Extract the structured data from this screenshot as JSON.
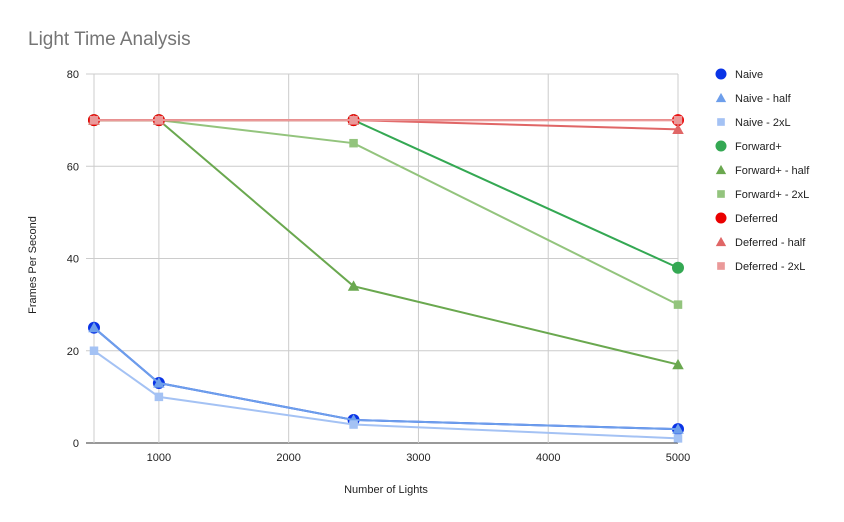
{
  "chart_data": {
    "type": "line",
    "title": "Light Time Analysis",
    "xlabel": "Number of Lights",
    "ylabel": "Frames Per Second",
    "xlim": [
      500,
      5000
    ],
    "ylim": [
      0,
      80
    ],
    "x_ticks": [
      1000,
      2000,
      3000,
      4000,
      5000
    ],
    "y_ticks": [
      0,
      20,
      40,
      60,
      80
    ],
    "grid": true,
    "legend_position": "right",
    "x": [
      500,
      1000,
      2500,
      5000
    ],
    "series": [
      {
        "name": "Naive",
        "marker": "circle",
        "color": "#0a34e6",
        "values": [
          25,
          13,
          5,
          3
        ]
      },
      {
        "name": "Naive - half",
        "marker": "triangle",
        "color": "#6d9eeb",
        "values": [
          25,
          13,
          5,
          3
        ]
      },
      {
        "name": "Naive - 2xL",
        "marker": "square",
        "color": "#a4c2f4",
        "values": [
          20,
          10,
          4,
          1
        ]
      },
      {
        "name": "Forward+",
        "marker": "circle",
        "color": "#34a853",
        "values": [
          70,
          70,
          70,
          38
        ]
      },
      {
        "name": "Forward+ - half",
        "marker": "triangle",
        "color": "#6aa84f",
        "values": [
          70,
          70,
          34,
          17
        ]
      },
      {
        "name": "Forward+ - 2xL",
        "marker": "square",
        "color": "#93c47d",
        "values": [
          70,
          70,
          65,
          30
        ]
      },
      {
        "name": "Deferred",
        "marker": "circle",
        "color": "#ea0000",
        "values": [
          70,
          70,
          70,
          70
        ]
      },
      {
        "name": "Deferred - half",
        "marker": "triangle",
        "color": "#e06666",
        "values": [
          70,
          70,
          70,
          68
        ]
      },
      {
        "name": "Deferred - 2xL",
        "marker": "square",
        "color": "#ea9999",
        "values": [
          70,
          70,
          70,
          70
        ]
      }
    ]
  }
}
